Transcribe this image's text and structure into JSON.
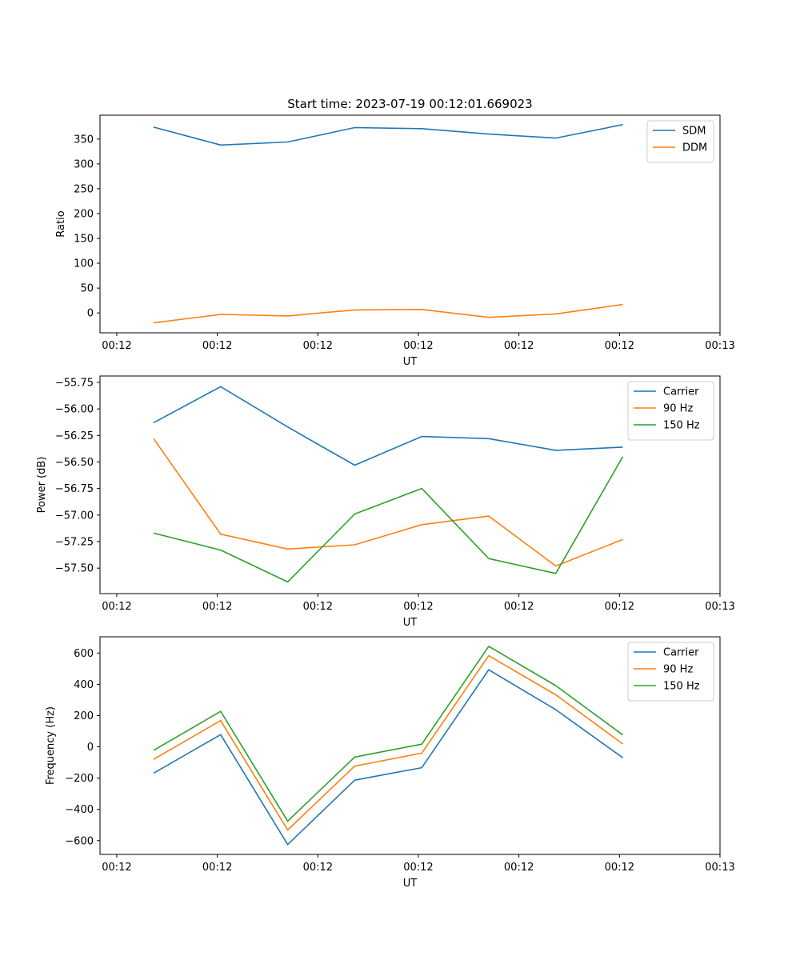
{
  "figure_title": "Start time: 2023-07-19 00:12:01.669023",
  "colors": {
    "c1": "#1f77b4",
    "c2": "#ff7f0e",
    "c3": "#2ca02c"
  },
  "chart_data": [
    {
      "type": "line",
      "id": "ratio",
      "title": "Start time: 2023-07-19 00:12:01.669023",
      "xlabel": "UT",
      "ylabel": "Ratio",
      "x": [
        1,
        2,
        3,
        4,
        5,
        6,
        7,
        8
      ],
      "xlim": [
        0.2,
        9.45
      ],
      "xticks": [
        0.45,
        1.95,
        3.45,
        4.95,
        6.45,
        7.95,
        9.45
      ],
      "xtick_labels": [
        "00:12",
        "00:12",
        "00:12",
        "00:12",
        "00:12",
        "00:12",
        "00:13"
      ],
      "ylim": [
        -40,
        398
      ],
      "yticks": [
        0,
        50,
        100,
        150,
        200,
        250,
        300,
        350
      ],
      "ytick_labels": [
        "0",
        "50",
        "100",
        "150",
        "200",
        "250",
        "300",
        "350"
      ],
      "legend": "top-right",
      "series": [
        {
          "name": "SDM",
          "color": "#1f77b4",
          "values": [
            374,
            338,
            344,
            373,
            371,
            360,
            352,
            379
          ]
        },
        {
          "name": "DDM",
          "color": "#ff7f0e",
          "values": [
            -20,
            -3,
            -6,
            6,
            7,
            -9,
            -2,
            17
          ]
        }
      ]
    },
    {
      "type": "line",
      "id": "power",
      "title": "",
      "xlabel": "UT",
      "ylabel": "Power (dB)",
      "x": [
        1,
        2,
        3,
        4,
        5,
        6,
        7,
        8
      ],
      "xlim": [
        0.2,
        9.45
      ],
      "xticks": [
        0.45,
        1.95,
        3.45,
        4.95,
        6.45,
        7.95,
        9.45
      ],
      "xtick_labels": [
        "00:12",
        "00:12",
        "00:12",
        "00:12",
        "00:12",
        "00:12",
        "00:13"
      ],
      "ylim": [
        -57.74,
        -55.69
      ],
      "yticks": [
        -57.5,
        -57.25,
        -57.0,
        -56.75,
        -56.5,
        -56.25,
        -56.0,
        -55.75
      ],
      "ytick_labels": [
        "−57.50",
        "−57.25",
        "−57.00",
        "−56.75",
        "−56.50",
        "−56.25",
        "−56.00",
        "−55.75"
      ],
      "legend": "top-right",
      "series": [
        {
          "name": "Carrier",
          "color": "#1f77b4",
          "values": [
            -56.13,
            -55.79,
            -56.17,
            -56.53,
            -56.26,
            -56.28,
            -56.39,
            -56.36
          ]
        },
        {
          "name": "90 Hz",
          "color": "#ff7f0e",
          "values": [
            -56.28,
            -57.18,
            -57.32,
            -57.28,
            -57.09,
            -57.01,
            -57.48,
            -57.23
          ]
        },
        {
          "name": "150 Hz",
          "color": "#2ca02c",
          "values": [
            -57.17,
            -57.33,
            -57.63,
            -56.99,
            -56.75,
            -57.41,
            -57.55,
            -56.45
          ]
        }
      ]
    },
    {
      "type": "line",
      "id": "frequency",
      "title": "",
      "xlabel": "UT",
      "ylabel": "Frequency (Hz)",
      "x": [
        1,
        2,
        3,
        4,
        5,
        6,
        7,
        8
      ],
      "xlim": [
        0.2,
        9.45
      ],
      "xticks": [
        0.45,
        1.95,
        3.45,
        4.95,
        6.45,
        7.95,
        9.45
      ],
      "xtick_labels": [
        "00:12",
        "00:12",
        "00:12",
        "00:12",
        "00:12",
        "00:12",
        "00:13"
      ],
      "ylim": [
        -688,
        704
      ],
      "yticks": [
        -600,
        -400,
        -200,
        0,
        200,
        400,
        600
      ],
      "ytick_labels": [
        "−600",
        "−400",
        "−200",
        "0",
        "200",
        "400",
        "600"
      ],
      "legend": "top-right",
      "series": [
        {
          "name": "Carrier",
          "color": "#1f77b4",
          "values": [
            -168,
            78,
            -625,
            -213,
            -133,
            493,
            238,
            -70
          ]
        },
        {
          "name": "90 Hz",
          "color": "#ff7f0e",
          "values": [
            -80,
            168,
            -532,
            -123,
            -40,
            583,
            333,
            18
          ]
        },
        {
          "name": "150 Hz",
          "color": "#2ca02c",
          "values": [
            -22,
            227,
            -475,
            -65,
            17,
            643,
            392,
            76
          ]
        }
      ]
    }
  ]
}
